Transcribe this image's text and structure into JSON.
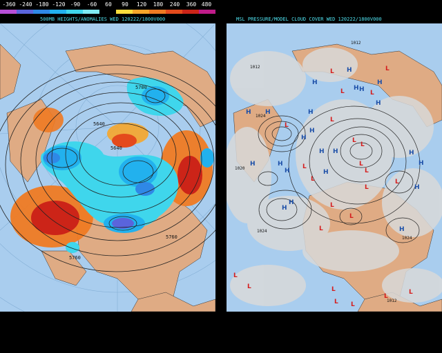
{
  "legend": {
    "labels": [
      "-360",
      "-240",
      "-180",
      "-120",
      "-90",
      "-60",
      "60",
      "90",
      "120",
      "180",
      "240",
      "360",
      "480"
    ],
    "colors": [
      "#b84fd8",
      "#5a64dc",
      "#2f88e6",
      "#22b1ee",
      "#3fd6ec",
      "#7feaf2",
      "#000000",
      "#f8dc3c",
      "#f6a62a",
      "#ef7a22",
      "#e44a1c",
      "#cc2418",
      "#bf1c8a"
    ]
  },
  "left_panel": {
    "title": "500MB HEIGHTS/ANOMALIES WED 120222/1800V000",
    "contour_labels": [
      "5700",
      "5640",
      "5640",
      "5760",
      "5760"
    ]
  },
  "right_panel": {
    "title": "MSL PRESSURE/MODEL CLOUD COVER WED 120222/1800V000",
    "isobar_labels": [
      "1012",
      "1012",
      "1024",
      "1020",
      "1024",
      "1024",
      "1012"
    ],
    "high_marker": "H",
    "low_marker": "L"
  },
  "colors": {
    "ocean": "#a9cdee",
    "land": "#dfab84",
    "cloud": "#d9d9d9",
    "title": "#4fe0ee",
    "high": "#1c4fa8",
    "low": "#d51c1c"
  }
}
